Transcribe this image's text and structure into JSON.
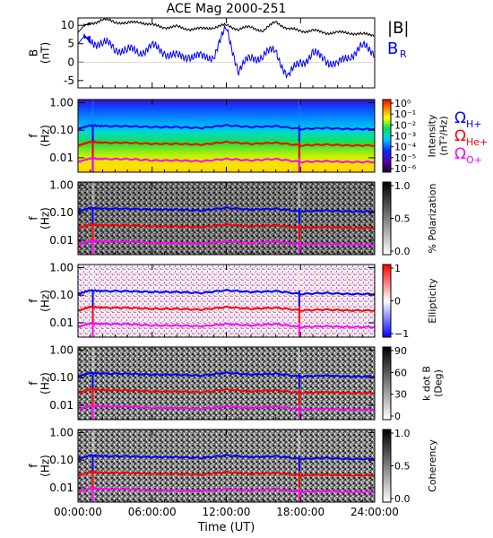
{
  "chart_data": {
    "type": "line",
    "title": "ACE Mag 2000-251",
    "xlabel": "Time (UT)",
    "x_ticks": [
      "00:00:00",
      "06:00:00",
      "12:00:00",
      "18:00:00",
      "24:00:00"
    ],
    "xlim_hours": [
      0,
      24
    ],
    "colors": {
      "B_mag": "#000000",
      "B_R": "#0000ff",
      "f_H": "#0000ff",
      "f_He": "#ff0000",
      "f_O": "#ff00ff"
    },
    "panels": [
      {
        "id": "field",
        "ylabel": "B\n(nT)",
        "ylim": [
          -7,
          12
        ],
        "y_ticks": [
          10,
          5,
          0,
          -5
        ],
        "legend": [
          {
            "text": "|B|",
            "color": "#000000"
          },
          {
            "text": "B_R",
            "color": "#0000ff"
          }
        ],
        "series": [
          {
            "name": "|B|",
            "x_hours": [
              0,
              0.5,
              1,
              2,
              3,
              4,
              5,
              6,
              7,
              8,
              9,
              10,
              11,
              12,
              13,
              14,
              15,
              16,
              17,
              18,
              19,
              20,
              21,
              22,
              23,
              24
            ],
            "values": [
              8,
              10,
              10.5,
              11.5,
              11,
              10.5,
              11,
              10,
              9.5,
              9.5,
              9,
              9,
              9.5,
              10,
              9,
              9.5,
              8.5,
              11,
              9,
              8.5,
              8.5,
              8,
              8,
              8,
              7.5,
              7.5
            ]
          },
          {
            "name": "B_R",
            "x_hours": [
              0,
              0.5,
              1,
              2,
              3,
              4,
              5,
              6,
              7,
              8,
              9,
              10,
              11,
              12,
              13,
              14,
              15,
              16,
              17,
              18,
              19,
              20,
              21,
              22,
              23,
              24
            ],
            "values": [
              5,
              7,
              6,
              5,
              4,
              3,
              3,
              4,
              3,
              1,
              2,
              1,
              2,
              9,
              -2,
              1,
              2,
              3,
              -4,
              0,
              2,
              1,
              -1,
              2,
              4,
              3
            ]
          }
        ]
      },
      {
        "id": "intensity",
        "ylabel": "f\n(Hz)",
        "cbar_label": "Intensity\n(nT²/Hz)",
        "cbar_ticks": [
          "10⁰",
          "10⁻¹",
          "10⁻²",
          "10⁻³",
          "10⁻⁴",
          "10⁻⁵",
          "10⁻⁶"
        ],
        "colormap": "rainbow"
      },
      {
        "id": "polarization",
        "ylabel": "f\n(Hz)",
        "cbar_label": "% Polarization",
        "cbar_ticks": [
          "1.0",
          "0.5",
          "0.0"
        ],
        "colormap": "gray"
      },
      {
        "id": "ellipticity",
        "ylabel": "f\n(Hz)",
        "cbar_label": "Ellipticity",
        "cbar_ticks": [
          "1",
          "0",
          "−1"
        ],
        "colormap": "bwr"
      },
      {
        "id": "kdotb",
        "ylabel": "f\n(Hz)",
        "cbar_label": "k dot B\n(Deg)",
        "cbar_ticks": [
          "90",
          "60",
          "30",
          "0"
        ],
        "colormap": "gray"
      },
      {
        "id": "coherency",
        "ylabel": "f\n(Hz)",
        "cbar_label": "Coherency",
        "cbar_ticks": [
          "1.0",
          "0.5",
          "0.0"
        ],
        "colormap": "gray"
      }
    ],
    "spectro_ylim_hz": [
      0.003,
      1.3
    ],
    "spectro_y_ticks": [
      {
        "label": "1.00",
        "v": 1.0
      },
      {
        "label": "0.10",
        "v": 0.1
      },
      {
        "label": "0.01",
        "v": 0.01
      }
    ],
    "gyrofrequency_legend": [
      {
        "symbol": "Ω",
        "sub": "H+",
        "color": "#0000ff"
      },
      {
        "symbol": "Ω",
        "sub": "He+",
        "color": "#ff0000"
      },
      {
        "symbol": "Ω",
        "sub": "O+",
        "color": "#ff00ff"
      }
    ],
    "gyrofrequency_hz": {
      "x_hours": [
        0,
        1,
        2,
        4,
        6,
        8,
        10,
        12,
        14,
        16,
        18,
        20,
        22,
        24
      ],
      "H+": [
        0.11,
        0.15,
        0.14,
        0.14,
        0.13,
        0.13,
        0.12,
        0.15,
        0.13,
        0.14,
        0.11,
        0.12,
        0.11,
        0.11
      ],
      "He+": [
        0.027,
        0.038,
        0.035,
        0.035,
        0.032,
        0.032,
        0.03,
        0.037,
        0.032,
        0.035,
        0.028,
        0.03,
        0.028,
        0.028
      ],
      "O+": [
        0.007,
        0.0095,
        0.009,
        0.009,
        0.008,
        0.008,
        0.0075,
        0.009,
        0.008,
        0.009,
        0.007,
        0.0075,
        0.007,
        0.007
      ]
    },
    "dropouts_hours": [
      1.2,
      17.9
    ]
  }
}
